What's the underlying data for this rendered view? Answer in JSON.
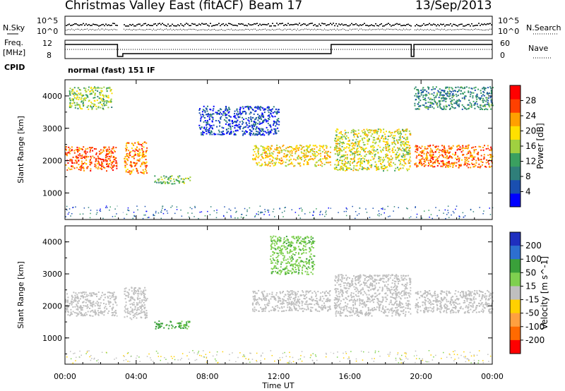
{
  "header": {
    "station": "Christmas Valley East (fitACF)",
    "beam": "Beam 17",
    "date": "13/Sep/2013"
  },
  "noise_panel": {
    "left_label": "N.Sky",
    "right_label": "N.Search",
    "y_ticks_left": [
      "10^5",
      "10^0"
    ],
    "y_ticks_right": [
      "10^5",
      "10^0"
    ]
  },
  "freq_panel": {
    "left_label_1": "Freq.",
    "left_label_2": "[MHz]",
    "right_label": "Nave",
    "y_ticks_left": [
      "12",
      "8"
    ],
    "y_ticks_right": [
      "60",
      "0"
    ]
  },
  "cpid": {
    "label": "CPID",
    "mode": "normal (fast) 151 IF"
  },
  "chart_data": [
    {
      "type": "heatmap",
      "title": "",
      "xlabel": "",
      "ylabel": "Slant Range [km]",
      "xlim": [
        0,
        24
      ],
      "ylim": [
        180,
        4500
      ],
      "y_ticks": [
        "4000",
        "3000",
        "2000",
        "1000"
      ],
      "x_ticks": [
        "00:00",
        "04:00",
        "08:00",
        "12:00",
        "16:00",
        "20:00",
        "00:00"
      ],
      "colorbar": {
        "label": "Power [dB]",
        "ticks": [
          "28",
          "24",
          "20",
          "16",
          "12",
          "8",
          "4"
        ],
        "colors": [
          "#0000ff",
          "#1a4fb0",
          "#2f7f7a",
          "#3aa060",
          "#a0d040",
          "#ffe000",
          "#ffa000",
          "#ff4000",
          "#ff0000"
        ]
      },
      "data_gaps_ut": [
        [
          2.95,
          3.25
        ],
        [
          14.95,
          15.05
        ],
        [
          19.45,
          19.6
        ]
      ],
      "echo_regions": [
        {
          "x": [
            0.0,
            2.9
          ],
          "range": [
            1700,
            2450
          ],
          "value": 26
        },
        {
          "x": [
            3.3,
            4.6
          ],
          "range": [
            1600,
            2600
          ],
          "value": 24
        },
        {
          "x": [
            5.0,
            7.0
          ],
          "range": [
            1300,
            1550
          ],
          "value": 14
        },
        {
          "x": [
            7.5,
            12.0
          ],
          "range": [
            2800,
            3700
          ],
          "value": 5
        },
        {
          "x": [
            10.5,
            14.9
          ],
          "range": [
            1850,
            2500
          ],
          "value": 20
        },
        {
          "x": [
            15.1,
            19.4
          ],
          "range": [
            1700,
            3000
          ],
          "value": 18
        },
        {
          "x": [
            19.6,
            24.0
          ],
          "range": [
            1800,
            2500
          ],
          "value": 25
        },
        {
          "x": [
            19.6,
            24.0
          ],
          "range": [
            3600,
            4300
          ],
          "value": 10
        },
        {
          "x": [
            0.2,
            2.6
          ],
          "range": [
            3600,
            4300
          ],
          "value": 15
        }
      ]
    },
    {
      "type": "heatmap",
      "title": "",
      "xlabel": "Time UT",
      "ylabel": "Slant Range [km]",
      "xlim": [
        0,
        24
      ],
      "ylim": [
        180,
        4500
      ],
      "y_ticks": [
        "4000",
        "3000",
        "2000",
        "1000"
      ],
      "x_ticks": [
        "00:00",
        "04:00",
        "08:00",
        "12:00",
        "16:00",
        "20:00",
        "00:00"
      ],
      "colorbar": {
        "label": "Velocity [m s^-1]",
        "ticks": [
          "200",
          "100",
          "50",
          "15",
          "-15",
          "-50",
          "-100",
          "-200"
        ],
        "colors": [
          "#1f2fbf",
          "#2d6fd0",
          "#3aa03a",
          "#7fd04f",
          "#bfbfbf",
          "#ffd000",
          "#ffa040",
          "#ff6a00",
          "#ff0000"
        ]
      },
      "data_gaps_ut": [
        [
          2.95,
          3.25
        ],
        [
          14.95,
          15.05
        ],
        [
          19.45,
          19.6
        ]
      ],
      "echo_regions": [
        {
          "x": [
            0.0,
            2.9
          ],
          "range": [
            1700,
            2450
          ],
          "value": 0
        },
        {
          "x": [
            3.3,
            4.6
          ],
          "range": [
            1600,
            2600
          ],
          "value": 0
        },
        {
          "x": [
            5.0,
            7.0
          ],
          "range": [
            1300,
            1550
          ],
          "value": 60
        },
        {
          "x": [
            10.5,
            14.9
          ],
          "range": [
            1850,
            2500
          ],
          "value": 0
        },
        {
          "x": [
            15.1,
            19.4
          ],
          "range": [
            1700,
            3000
          ],
          "value": 0
        },
        {
          "x": [
            19.6,
            24.0
          ],
          "range": [
            1800,
            2500
          ],
          "value": 0
        },
        {
          "x": [
            11.5,
            14.0
          ],
          "range": [
            3000,
            4200
          ],
          "value": 40
        }
      ]
    }
  ]
}
